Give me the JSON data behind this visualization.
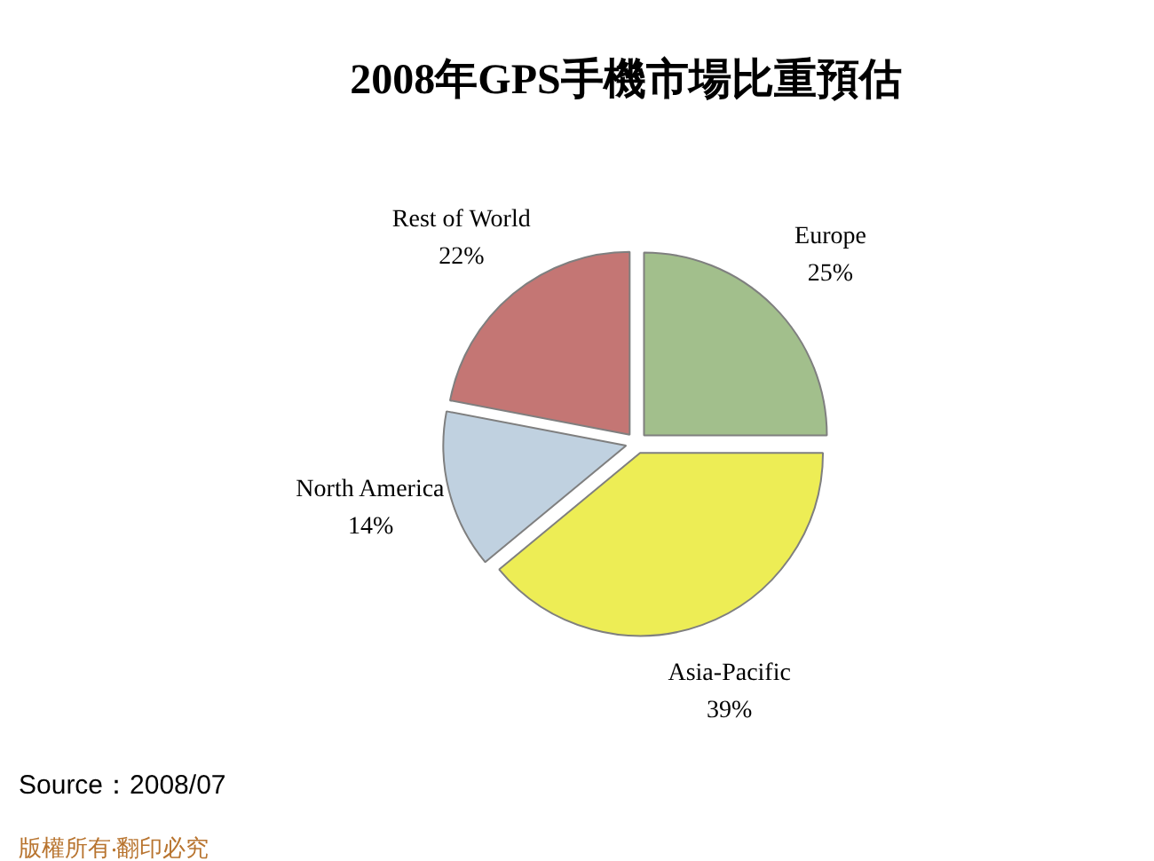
{
  "chart_data": {
    "type": "pie",
    "title": "2008年GPS手機市場比重預估",
    "categories": [
      "Europe",
      "Asia-Pacific",
      "North America",
      "Rest of World"
    ],
    "values": [
      25,
      39,
      14,
      22
    ],
    "colors": [
      "#a2bf8c",
      "#eded55",
      "#c0d1e0",
      "#c47674"
    ],
    "value_labels": [
      "25%",
      "39%",
      "14%",
      "22%"
    ],
    "annotations": [
      "Source：2008/07",
      "版權所有‧翻印必究"
    ]
  }
}
